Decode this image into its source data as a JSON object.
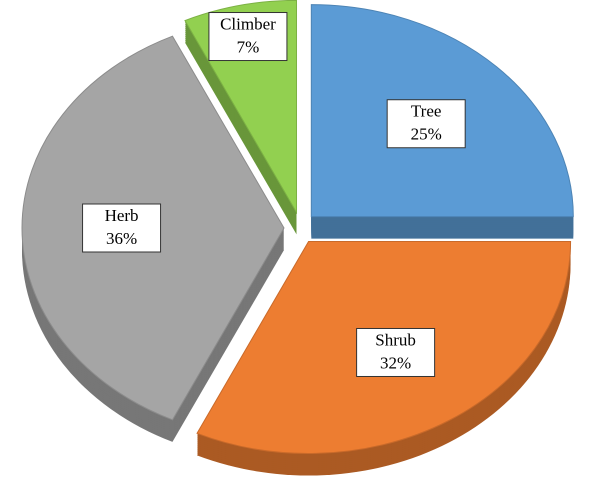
{
  "chart_data": {
    "type": "pie",
    "categories": [
      "Tree",
      "Shrub",
      "Herb",
      "Climber"
    ],
    "values": [
      25,
      32,
      36,
      7
    ],
    "value_labels": [
      "25%",
      "32%",
      "36%",
      "7%"
    ],
    "colors": [
      "#5b9bd5",
      "#ed7d31",
      "#a5a5a5",
      "#92d050"
    ],
    "exploded": true,
    "three_d": true
  }
}
